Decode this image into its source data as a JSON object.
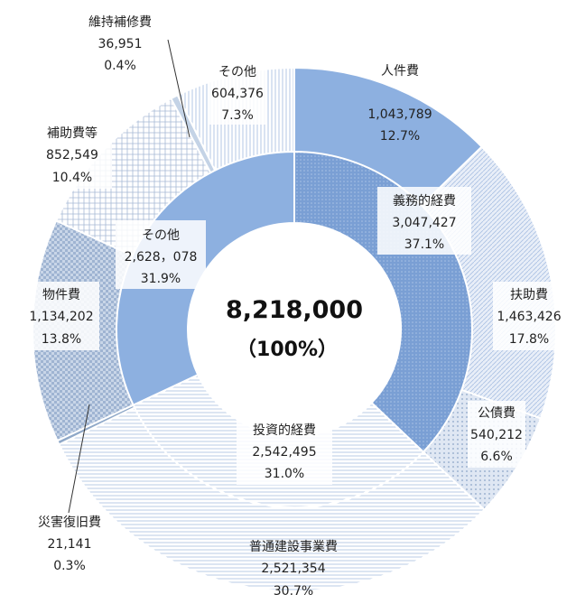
{
  "chart_data": {
    "type": "pie",
    "variant": "nested-donut",
    "total": {
      "value": "8,218,000",
      "percent": "（100%）"
    },
    "inner_ring": [
      {
        "name": "義務的経費",
        "value": "3,047,427",
        "percent": "37.1%",
        "color": "#7a9fd4"
      },
      {
        "name": "投資的経費",
        "value": "2,542,495",
        "percent": "31.0%",
        "color": "#d9e4f3"
      },
      {
        "name": "その他",
        "value": "2,628，078",
        "percent": "31.9%",
        "color": "#8db0e0"
      }
    ],
    "outer_ring": [
      {
        "name": "人件費",
        "value": "1,043,789",
        "percent": "12.7%",
        "color": "#8db0e0"
      },
      {
        "name": "扶助費",
        "value": "1,463,426",
        "percent": "17.8%",
        "color": "#dbe6f5"
      },
      {
        "name": "公債費",
        "value": "540,212",
        "percent": "6.6%",
        "color": "#e4ecf7"
      },
      {
        "name": "普通建設事業費",
        "value": "2,521,354",
        "percent": "30.7%",
        "color": "#eef3fa"
      },
      {
        "name": "災害復旧費",
        "value": "21,141",
        "percent": "0.3%",
        "color": "#9fb9d8"
      },
      {
        "name": "物件費",
        "value": "1,134,202",
        "percent": "13.8%",
        "color": "#bccce0"
      },
      {
        "name": "補助費等",
        "value": "852,549",
        "percent": "10.4%",
        "color": "#d5dfec"
      },
      {
        "name": "維持補修費",
        "value": "36,951",
        "percent": "0.4%",
        "color": "#c4d3e6"
      },
      {
        "name": "その他",
        "value": "604,376",
        "percent": "7.3%",
        "color": "#aec6e6"
      }
    ]
  }
}
